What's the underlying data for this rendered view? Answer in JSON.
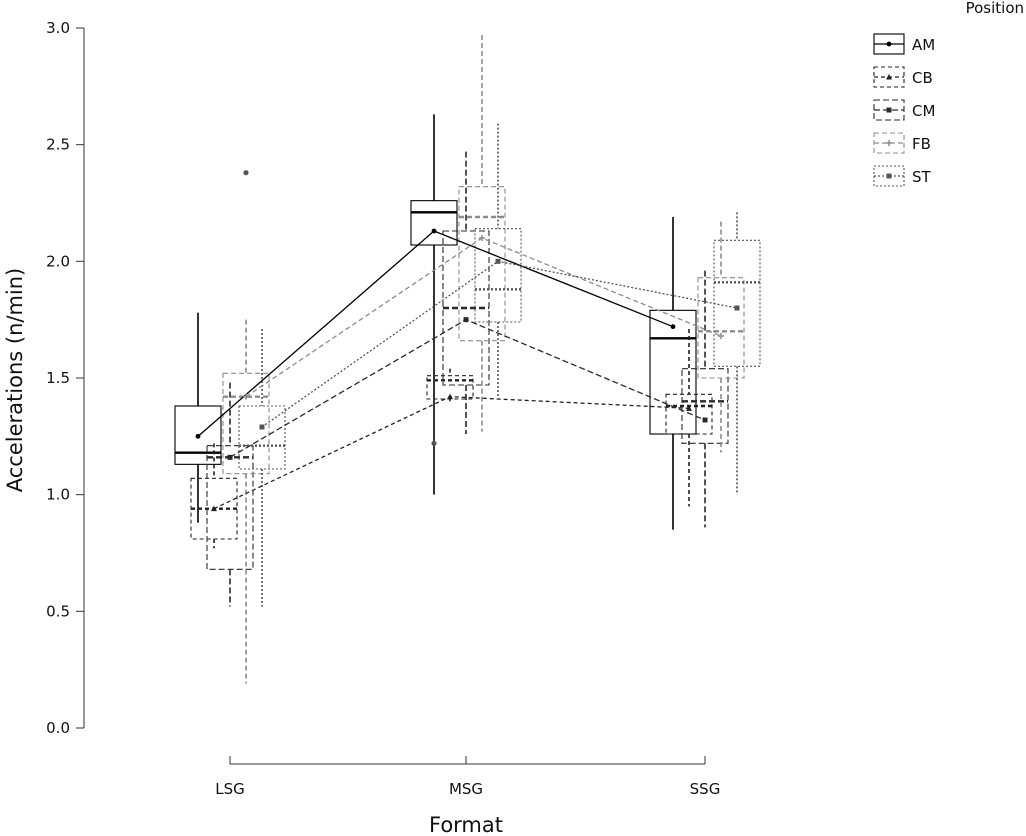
{
  "chart_data": {
    "type": "box",
    "xlabel": "Format",
    "ylabel": "Accelerations (n/min)",
    "ylim": [
      0,
      3
    ],
    "yticks": [
      "0.0",
      "0.5",
      "1.0",
      "1.5",
      "2.0",
      "2.5",
      "3.0"
    ],
    "categories": [
      "LSG",
      "MSG",
      "SSG"
    ],
    "legend": {
      "title": "Position",
      "placement": "top-right"
    },
    "grid": false,
    "series": [
      {
        "name": "AM",
        "color": "#000000",
        "dash": "solid",
        "marker": "circle",
        "boxes": [
          {
            "category": "LSG",
            "whisker_low": 0.88,
            "q1": 1.13,
            "median": 1.18,
            "q3": 1.38,
            "whisker_high": 1.78,
            "mean": 1.25,
            "outliers": []
          },
          {
            "category": "MSG",
            "whisker_low": 1.0,
            "q1": 2.07,
            "median": 2.21,
            "q3": 2.26,
            "whisker_high": 2.63,
            "mean": 2.13,
            "outliers": [
              1.22
            ]
          },
          {
            "category": "SSG",
            "whisker_low": 0.85,
            "q1": 1.26,
            "median": 1.67,
            "q3": 1.79,
            "whisker_high": 2.19,
            "mean": 1.72,
            "outliers": []
          }
        ]
      },
      {
        "name": "CB",
        "color": "#222222",
        "dash": "4,3",
        "marker": "triangle",
        "boxes": [
          {
            "category": "LSG",
            "whisker_low": 0.77,
            "q1": 0.81,
            "median": 0.94,
            "q3": 1.07,
            "whisker_high": 1.22,
            "mean": 0.94,
            "outliers": []
          },
          {
            "category": "MSG",
            "whisker_low": 1.4,
            "q1": 1.41,
            "median": 1.49,
            "q3": 1.51,
            "whisker_high": 1.54,
            "mean": 1.42,
            "outliers": []
          },
          {
            "category": "SSG",
            "whisker_low": 0.95,
            "q1": 1.26,
            "median": 1.38,
            "q3": 1.43,
            "whisker_high": 1.71,
            "mean": 1.37,
            "outliers": []
          }
        ]
      },
      {
        "name": "CM",
        "color": "#2a2a2a",
        "dash": "6,3",
        "marker": "square",
        "boxes": [
          {
            "category": "LSG",
            "whisker_low": 0.52,
            "q1": 0.68,
            "median": 1.16,
            "q3": 1.21,
            "whisker_high": 1.48,
            "mean": 1.16,
            "outliers": []
          },
          {
            "category": "MSG",
            "whisker_low": 1.26,
            "q1": 1.47,
            "median": 1.8,
            "q3": 2.13,
            "whisker_high": 2.47,
            "mean": 1.75,
            "outliers": []
          },
          {
            "category": "SSG",
            "whisker_low": 0.86,
            "q1": 1.22,
            "median": 1.4,
            "q3": 1.54,
            "whisker_high": 1.96,
            "mean": 1.32,
            "outliers": []
          }
        ]
      },
      {
        "name": "FB",
        "color": "#8c8c8c",
        "dash": "5,3",
        "marker": "plus",
        "boxes": [
          {
            "category": "LSG",
            "whisker_low": 0.19,
            "q1": 1.09,
            "median": 1.42,
            "q3": 1.52,
            "whisker_high": 1.75,
            "mean": 1.42,
            "outliers": [
              2.38
            ]
          },
          {
            "category": "MSG",
            "whisker_low": 1.27,
            "q1": 1.66,
            "median": 2.19,
            "q3": 2.32,
            "whisker_high": 2.97,
            "mean": 2.1,
            "outliers": []
          },
          {
            "category": "SSG",
            "whisker_low": 1.18,
            "q1": 1.5,
            "median": 1.7,
            "q3": 1.93,
            "whisker_high": 2.17,
            "mean": 1.68,
            "outliers": []
          }
        ]
      },
      {
        "name": "ST",
        "color": "#555555",
        "dash": "2,2",
        "marker": "square",
        "boxes": [
          {
            "category": "LSG",
            "whisker_low": 0.52,
            "q1": 1.11,
            "median": 1.21,
            "q3": 1.38,
            "whisker_high": 1.71,
            "mean": 1.29,
            "outliers": []
          },
          {
            "category": "MSG",
            "whisker_low": 1.42,
            "q1": 1.74,
            "median": 1.88,
            "q3": 2.14,
            "whisker_high": 2.59,
            "mean": 2.0,
            "outliers": []
          },
          {
            "category": "SSG",
            "whisker_low": 1.0,
            "q1": 1.55,
            "median": 1.91,
            "q3": 2.09,
            "whisker_high": 2.21,
            "mean": 1.8,
            "outliers": []
          }
        ]
      }
    ]
  }
}
